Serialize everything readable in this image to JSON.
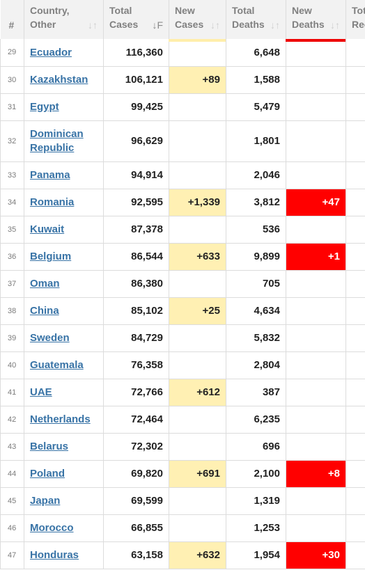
{
  "headers": {
    "rank": "#",
    "country": [
      "Country,",
      "Other"
    ],
    "total_cases": [
      "Total",
      "Cases"
    ],
    "new_cases": [
      "New",
      "Cases"
    ],
    "total_deaths": [
      "Total",
      "Deaths"
    ],
    "new_deaths": [
      "New",
      "Deaths"
    ],
    "total_recovered": [
      "Tot",
      "Rec"
    ]
  },
  "rows": [
    {
      "rank": "29",
      "country": "Ecuador",
      "total_cases": "116,360",
      "new_cases": "",
      "total_deaths": "6,648",
      "new_deaths": ""
    },
    {
      "rank": "30",
      "country": "Kazakhstan",
      "total_cases": "106,121",
      "new_cases": "+89",
      "total_deaths": "1,588",
      "new_deaths": ""
    },
    {
      "rank": "31",
      "country": "Egypt",
      "total_cases": "99,425",
      "new_cases": "",
      "total_deaths": "5,479",
      "new_deaths": ""
    },
    {
      "rank": "32",
      "country": "Dominican Republic",
      "total_cases": "96,629",
      "new_cases": "",
      "total_deaths": "1,801",
      "new_deaths": ""
    },
    {
      "rank": "33",
      "country": "Panama",
      "total_cases": "94,914",
      "new_cases": "",
      "total_deaths": "2,046",
      "new_deaths": ""
    },
    {
      "rank": "34",
      "country": "Romania",
      "total_cases": "92,595",
      "new_cases": "+1,339",
      "total_deaths": "3,812",
      "new_deaths": "+47"
    },
    {
      "rank": "35",
      "country": "Kuwait",
      "total_cases": "87,378",
      "new_cases": "",
      "total_deaths": "536",
      "new_deaths": ""
    },
    {
      "rank": "36",
      "country": "Belgium",
      "total_cases": "86,544",
      "new_cases": "+633",
      "total_deaths": "9,899",
      "new_deaths": "+1"
    },
    {
      "rank": "37",
      "country": "Oman",
      "total_cases": "86,380",
      "new_cases": "",
      "total_deaths": "705",
      "new_deaths": ""
    },
    {
      "rank": "38",
      "country": "China",
      "total_cases": "85,102",
      "new_cases": "+25",
      "total_deaths": "4,634",
      "new_deaths": ""
    },
    {
      "rank": "39",
      "country": "Sweden",
      "total_cases": "84,729",
      "new_cases": "",
      "total_deaths": "5,832",
      "new_deaths": ""
    },
    {
      "rank": "40",
      "country": "Guatemala",
      "total_cases": "76,358",
      "new_cases": "",
      "total_deaths": "2,804",
      "new_deaths": ""
    },
    {
      "rank": "41",
      "country": "UAE",
      "total_cases": "72,766",
      "new_cases": "+612",
      "total_deaths": "387",
      "new_deaths": ""
    },
    {
      "rank": "42",
      "country": "Netherlands",
      "total_cases": "72,464",
      "new_cases": "",
      "total_deaths": "6,235",
      "new_deaths": ""
    },
    {
      "rank": "43",
      "country": "Belarus",
      "total_cases": "72,302",
      "new_cases": "",
      "total_deaths": "696",
      "new_deaths": ""
    },
    {
      "rank": "44",
      "country": "Poland",
      "total_cases": "69,820",
      "new_cases": "+691",
      "total_deaths": "2,100",
      "new_deaths": "+8"
    },
    {
      "rank": "45",
      "country": "Japan",
      "total_cases": "69,599",
      "new_cases": "",
      "total_deaths": "1,319",
      "new_deaths": ""
    },
    {
      "rank": "46",
      "country": "Morocco",
      "total_cases": "66,855",
      "new_cases": "",
      "total_deaths": "1,253",
      "new_deaths": ""
    },
    {
      "rank": "47",
      "country": "Honduras",
      "total_cases": "63,158",
      "new_cases": "+632",
      "total_deaths": "1,954",
      "new_deaths": "+30"
    }
  ],
  "colors": {
    "new_cases_bg": "#fff0b3",
    "new_deaths_bg": "#ff0000",
    "link": "#3873a6"
  }
}
